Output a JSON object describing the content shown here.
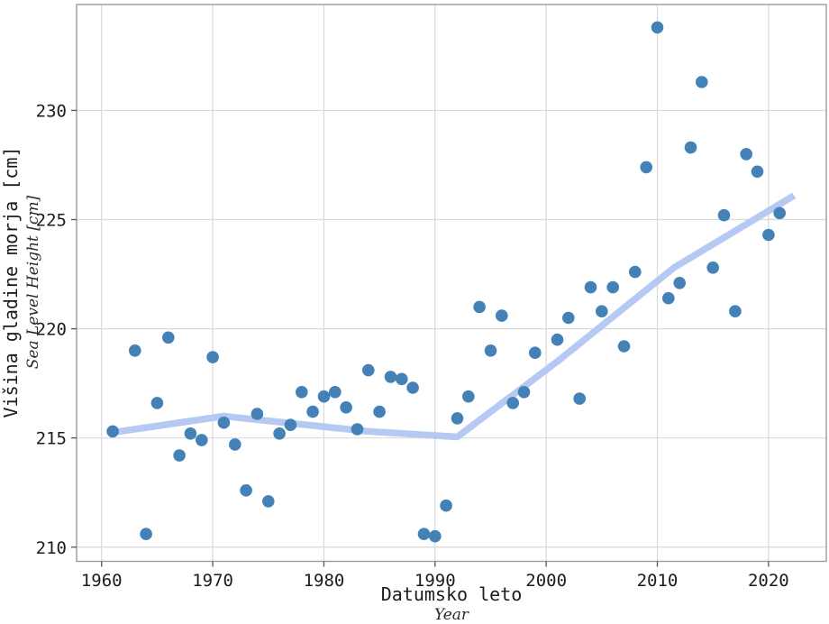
{
  "chart_data": {
    "type": "scatter",
    "title": "",
    "xlabel": "Datumsko leto",
    "xlabel_secondary": "Year",
    "ylabel": "Višina gladine morja [cm]",
    "ylabel_secondary": "Sea Level Height [cm]",
    "xlim": [
      1957.75,
      2025.2
    ],
    "ylim": [
      209.35,
      234.85
    ],
    "x_ticks": [
      1960,
      1970,
      1980,
      1990,
      2000,
      2010,
      2020
    ],
    "y_ticks": [
      210,
      215,
      220,
      225,
      230
    ],
    "grid": true,
    "legend_position": "none",
    "colors": {
      "point": "#4381b7",
      "trend": "#b6c9f2",
      "grid": "#d9d9d9",
      "spine": "#9b9b9b",
      "tick": "#555555",
      "text": "#1c1c1c"
    },
    "points": [
      [
        1961,
        215.3
      ],
      [
        1963,
        219.0
      ],
      [
        1964,
        210.6
      ],
      [
        1965,
        216.6
      ],
      [
        1966,
        219.6
      ],
      [
        1967,
        214.2
      ],
      [
        1968,
        215.2
      ],
      [
        1969,
        214.9
      ],
      [
        1970,
        218.7
      ],
      [
        1971,
        215.7
      ],
      [
        1972,
        214.7
      ],
      [
        1973,
        212.6
      ],
      [
        1974,
        216.1
      ],
      [
        1975,
        212.1
      ],
      [
        1976,
        215.2
      ],
      [
        1977,
        215.6
      ],
      [
        1978,
        217.1
      ],
      [
        1979,
        216.2
      ],
      [
        1980,
        216.9
      ],
      [
        1981,
        217.1
      ],
      [
        1982,
        216.4
      ],
      [
        1983,
        215.4
      ],
      [
        1984,
        218.1
      ],
      [
        1985,
        216.2
      ],
      [
        1986,
        217.8
      ],
      [
        1987,
        217.7
      ],
      [
        1988,
        217.3
      ],
      [
        1989,
        210.6
      ],
      [
        1990,
        210.5
      ],
      [
        1991,
        211.9
      ],
      [
        1992,
        215.9
      ],
      [
        1993,
        216.9
      ],
      [
        1994,
        221.0
      ],
      [
        1995,
        219.0
      ],
      [
        1996,
        220.6
      ],
      [
        1997,
        216.6
      ],
      [
        1998,
        217.1
      ],
      [
        1999,
        218.9
      ],
      [
        2001,
        219.5
      ],
      [
        2002,
        220.5
      ],
      [
        2003,
        216.8
      ],
      [
        2004,
        221.9
      ],
      [
        2005,
        220.8
      ],
      [
        2006,
        221.9
      ],
      [
        2007,
        219.2
      ],
      [
        2008,
        222.6
      ],
      [
        2009,
        227.4
      ],
      [
        2010,
        233.8
      ],
      [
        2011,
        221.4
      ],
      [
        2012,
        222.1
      ],
      [
        2013,
        228.3
      ],
      [
        2014,
        231.3
      ],
      [
        2015,
        222.8
      ],
      [
        2016,
        225.2
      ],
      [
        2017,
        220.8
      ],
      [
        2018,
        228.0
      ],
      [
        2019,
        227.2
      ],
      [
        2020,
        224.3
      ],
      [
        2021,
        225.3
      ]
    ],
    "trend_line": [
      [
        1961,
        215.25
      ],
      [
        1971,
        216.0
      ],
      [
        1984,
        215.3
      ],
      [
        1992,
        215.05
      ],
      [
        2001,
        218.5
      ],
      [
        2011.5,
        222.8
      ],
      [
        2022.3,
        226.1
      ]
    ]
  }
}
